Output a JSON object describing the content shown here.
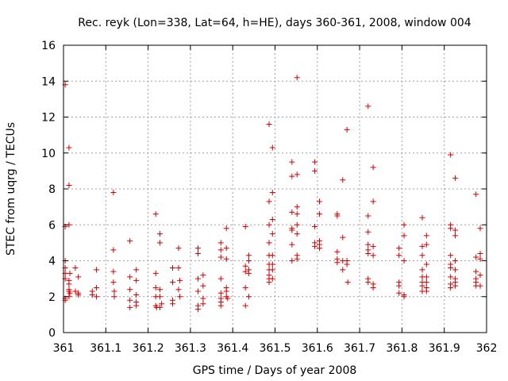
{
  "chart_data": {
    "type": "scatter",
    "title": "Rec. reyk (Lon=338, Lat=64, h=HE), days 360-361, 2008, window 004",
    "xlabel": "GPS time / Days of year 2008",
    "ylabel": "STEC from uqrg / TECUs",
    "xlim": [
      361,
      362
    ],
    "ylim": [
      0,
      16
    ],
    "xticks": [
      "361",
      "361.1",
      "361.2",
      "361.3",
      "361.4",
      "361.5",
      "361.6",
      "361.7",
      "361.8",
      "361.9",
      "362"
    ],
    "yticks": [
      "0",
      "2",
      "4",
      "6",
      "8",
      "10",
      "12",
      "14",
      "16"
    ],
    "grid": true,
    "marker": "plus",
    "color": "#d40000",
    "x": [
      361.004,
      361.004,
      361.004,
      361.004,
      361.004,
      361.004,
      361.004,
      361.004,
      361.013,
      361.013,
      361.013,
      361.013,
      361.013,
      361.013,
      361.013,
      361.013,
      361.015,
      361.015,
      361.028,
      361.028,
      361.035,
      361.035,
      361.035,
      361.068,
      361.068,
      361.078,
      361.078,
      361.078,
      361.118,
      361.118,
      361.118,
      361.118,
      361.12,
      361.12,
      361.157,
      361.157,
      361.157,
      361.157,
      361.157,
      361.172,
      361.172,
      361.172,
      361.172,
      361.172,
      361.218,
      361.218,
      361.218,
      361.218,
      361.218,
      361.22,
      361.228,
      361.228,
      361.228,
      361.228,
      361.228,
      361.232,
      361.258,
      361.258,
      361.258,
      361.258,
      361.272,
      361.272,
      361.272,
      361.275,
      361.275,
      361.318,
      361.318,
      361.318,
      361.318,
      361.318,
      361.318,
      361.33,
      361.33,
      361.33,
      361.33,
      361.372,
      361.372,
      361.372,
      361.372,
      361.372,
      361.372,
      361.372,
      361.372,
      361.385,
      361.385,
      361.385,
      361.385,
      361.385,
      361.385,
      361.388,
      361.43,
      361.43,
      361.43,
      361.43,
      361.43,
      361.438,
      361.438,
      361.438,
      361.438,
      361.438,
      361.486,
      361.486,
      361.486,
      361.486,
      361.486,
      361.486,
      361.486,
      361.486,
      361.486,
      361.486,
      361.494,
      361.494,
      361.494,
      361.494,
      361.494,
      361.494,
      361.494,
      361.494,
      361.54,
      361.54,
      361.54,
      361.54,
      361.54,
      361.54,
      361.54,
      361.552,
      361.552,
      361.552,
      361.552,
      361.552,
      361.552,
      361.552,
      361.552,
      361.594,
      361.594,
      361.594,
      361.594,
      361.594,
      361.605,
      361.605,
      361.605,
      361.605,
      361.605,
      361.647,
      361.647,
      361.647,
      361.647,
      361.647,
      361.66,
      361.66,
      361.66,
      361.66,
      361.67,
      361.67,
      361.67,
      361.672,
      361.72,
      361.72,
      361.72,
      361.72,
      361.72,
      361.72,
      361.72,
      361.72,
      361.732,
      361.732,
      361.732,
      361.732,
      361.732,
      361.732,
      361.793,
      361.793,
      361.793,
      361.793,
      361.793,
      361.805,
      361.805,
      361.805,
      361.805,
      361.805,
      361.848,
      361.848,
      361.848,
      361.848,
      361.848,
      361.848,
      361.848,
      361.848,
      361.858,
      361.858,
      361.858,
      361.858,
      361.858,
      361.858,
      361.858,
      361.915,
      361.915,
      361.915,
      361.915,
      361.915,
      361.915,
      361.915,
      361.915,
      361.915,
      361.926,
      361.926,
      361.926,
      361.926,
      361.926,
      361.926,
      361.926,
      361.926,
      361.975,
      361.975,
      361.975,
      361.975,
      361.975,
      361.975,
      361.985,
      361.985,
      361.985,
      361.985,
      361.985
    ],
    "y": [
      13.8,
      5.9,
      4.0,
      3.6,
      3.3,
      3.0,
      1.9,
      1.8,
      10.3,
      8.2,
      6.0,
      2.9,
      2.7,
      2.4,
      2.3,
      2.0,
      3.3,
      2.2,
      3.6,
      2.3,
      3.1,
      2.2,
      2.1,
      2.3,
      2.1,
      3.5,
      2.5,
      2.0,
      7.8,
      4.6,
      3.4,
      2.8,
      2.3,
      2.0,
      5.1,
      3.1,
      2.4,
      1.8,
      1.4,
      3.5,
      2.9,
      2.1,
      1.7,
      1.5,
      6.6,
      3.3,
      2.5,
      2.0,
      1.5,
      1.4,
      5.5,
      5.0,
      2.4,
      2.0,
      1.4,
      1.6,
      3.6,
      2.8,
      1.8,
      1.6,
      4.7,
      3.6,
      2.4,
      2.9,
      2.0,
      4.7,
      4.4,
      3.0,
      2.3,
      1.5,
      1.3,
      3.2,
      2.6,
      1.9,
      1.6,
      5.0,
      4.6,
      4.2,
      3.0,
      2.2,
      1.9,
      1.7,
      1.5,
      5.8,
      4.7,
      4.1,
      2.5,
      2.3,
      2.0,
      1.9,
      5.9,
      3.7,
      3.4,
      2.5,
      1.5,
      4.3,
      4.0,
      3.5,
      3.3,
      2.0,
      11.6,
      7.3,
      6.0,
      5.0,
      4.3,
      3.8,
      3.5,
      3.2,
      3.0,
      2.8,
      10.3,
      7.8,
      6.3,
      5.5,
      4.3,
      3.8,
      3.5,
      3.0,
      9.5,
      8.7,
      6.7,
      5.8,
      5.7,
      4.9,
      4.0,
      14.2,
      8.8,
      7.0,
      6.6,
      6.0,
      5.5,
      4.3,
      4.1,
      9.5,
      9.0,
      5.9,
      5.0,
      4.8,
      7.3,
      6.6,
      5.1,
      4.9,
      4.7,
      6.6,
      6.5,
      4.5,
      4.1,
      3.9,
      8.5,
      5.3,
      3.5,
      4.0,
      11.3,
      4.0,
      3.8,
      2.8,
      12.6,
      6.5,
      5.6,
      4.9,
      4.6,
      4.4,
      3.0,
      2.8,
      9.2,
      7.3,
      4.8,
      4.3,
      2.7,
      2.5,
      4.7,
      4.3,
      2.8,
      2.6,
      2.2,
      6.0,
      5.4,
      4.0,
      2.1,
      2.0,
      6.4,
      4.8,
      4.3,
      3.5,
      3.1,
      2.8,
      2.6,
      2.3,
      5.4,
      4.9,
      3.8,
      3.1,
      2.8,
      2.5,
      2.3,
      9.9,
      6.0,
      5.8,
      4.3,
      3.8,
      3.6,
      3.1,
      2.7,
      2.5,
      8.6,
      5.7,
      5.4,
      4.0,
      3.5,
      3.0,
      2.8,
      2.6,
      7.7,
      4.2,
      3.4,
      3.0,
      2.8,
      2.6,
      5.8,
      4.4,
      4.1,
      3.2,
      2.6
    ]
  }
}
